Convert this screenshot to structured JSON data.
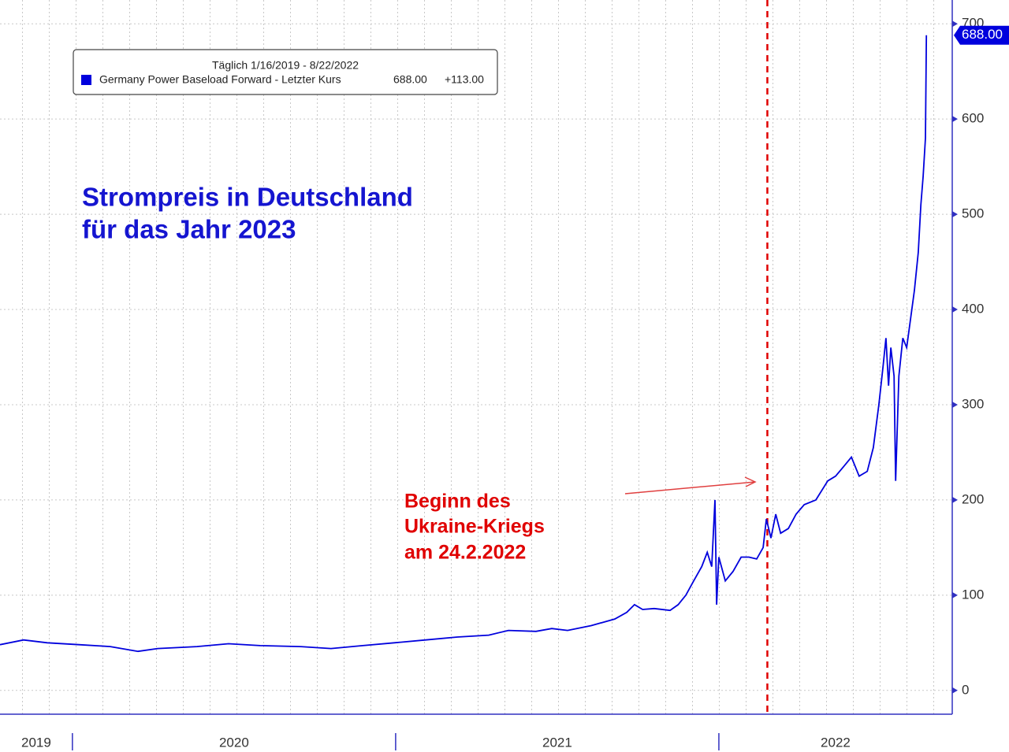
{
  "chart_data": {
    "type": "line",
    "title_lines": [
      "Strompreis in Deutschland",
      "für das Jahr 2023"
    ],
    "legend_title": "Täglich 1/16/2019 - 8/22/2022",
    "annotation_lines": [
      "Beginn des",
      "Ukraine-Kriegs",
      "am 24.2.2022"
    ],
    "event_x": 2022.15,
    "x": [
      2019.776,
      2019.849,
      2019.922,
      2020.02,
      2020.117,
      2020.203,
      2020.264,
      2020.386,
      2020.483,
      2020.581,
      2020.703,
      2020.8,
      2020.898,
      2020.996,
      2021.093,
      2021.191,
      2021.288,
      2021.349,
      2021.434,
      2021.483,
      2021.532,
      2021.605,
      2021.678,
      2021.715,
      2021.739,
      2021.764,
      2021.8,
      2021.849,
      2021.874,
      2021.898,
      2021.922,
      2021.947,
      2021.964,
      2021.978,
      2021.988,
      2021.993,
      2022.0,
      2022.02,
      2022.044,
      2022.069,
      2022.093,
      2022.117,
      2022.137,
      2022.147,
      2022.161,
      2022.176,
      2022.191,
      2022.215,
      2022.239,
      2022.264,
      2022.3,
      2022.337,
      2022.361,
      2022.386,
      2022.41,
      2022.434,
      2022.459,
      2022.478,
      2022.495,
      2022.508,
      2022.517,
      2022.525,
      2022.532,
      2022.542,
      2022.547,
      2022.557,
      2022.569,
      2022.581,
      2022.593,
      2022.605,
      2022.617,
      2022.625,
      2022.632,
      2022.639,
      2022.642
    ],
    "series": [
      {
        "name": "Germany Power Baseload Forward - Letzter Kurs",
        "color": "#0000dd",
        "values": [
          48,
          53,
          50,
          48,
          46,
          41,
          44,
          46,
          49,
          47,
          46,
          44,
          47,
          50,
          53,
          56,
          58,
          63,
          62,
          65,
          63,
          68,
          75,
          82,
          90,
          85,
          86,
          84,
          90,
          100,
          115,
          130,
          145,
          130,
          200,
          90,
          140,
          115,
          125,
          140,
          140,
          138,
          150,
          180,
          160,
          185,
          165,
          170,
          185,
          195,
          200,
          220,
          225,
          235,
          245,
          225,
          230,
          255,
          300,
          340,
          370,
          320,
          360,
          330,
          220,
          330,
          370,
          360,
          390,
          420,
          460,
          510,
          540,
          580,
          688
        ],
        "last_label": "688.00",
        "change_label": "+113.00"
      }
    ],
    "xlim": [
      2019.776,
      2022.722
    ],
    "xticks": [
      2020,
      2021,
      2022
    ],
    "x_labels": [
      "2019",
      "2020",
      "2021",
      "2022"
    ],
    "ylim": [
      -25,
      725
    ],
    "yticks": [
      0,
      100,
      200,
      300,
      400,
      500,
      600,
      700
    ],
    "grid": true
  }
}
